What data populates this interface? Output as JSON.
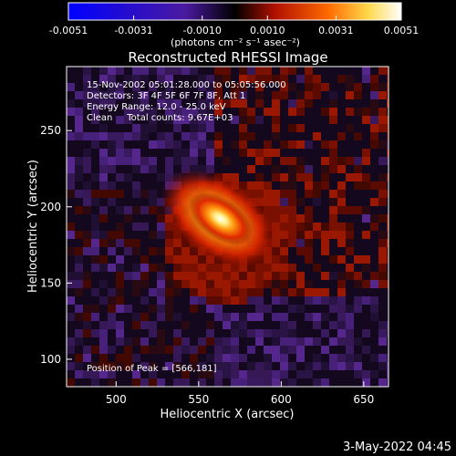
{
  "chart_data": {
    "type": "heatmap",
    "title": "Reconstructed RHESSI Image",
    "xlabel": "Heliocentric X (arcsec)",
    "ylabel": "Heliocentric Y (arcsec)",
    "xlim": [
      470,
      665
    ],
    "ylim": [
      82,
      292
    ],
    "x_ticks": [
      500,
      550,
      600,
      650
    ],
    "y_ticks": [
      100,
      150,
      200,
      250
    ],
    "annotations": [
      "15-Nov-2002 05:01:28.000 to 05:05:56.000",
      "Detectors: 3F 4F 5F 6F 7F 8F, Att 1",
      "Energy Range: 12.0 - 25.0 keV",
      "Clean     Total counts: 9.67E+03"
    ],
    "peak_label": "Position of Peak = [566,181]",
    "peak": [
      566,
      181
    ],
    "colorbar": {
      "range": [
        -0.0051,
        0.0051
      ],
      "tick_labels": [
        "-0.0051",
        "-0.0031",
        "-0.0010",
        "0.0010",
        "0.0031",
        "0.0051"
      ],
      "tick_values": [
        -0.0051,
        -0.0031,
        -0.001,
        0.001,
        0.0031,
        0.0051
      ],
      "units_label": "(photons cm⁻² s⁻¹ asec⁻²)",
      "colormap": [
        "#0000ff",
        "#5a1fc8",
        "#000000",
        "#cc1a00",
        "#ff7a00",
        "#ffff66",
        "#ffffff"
      ]
    },
    "timestamp": "3-May-2022 04:45"
  }
}
